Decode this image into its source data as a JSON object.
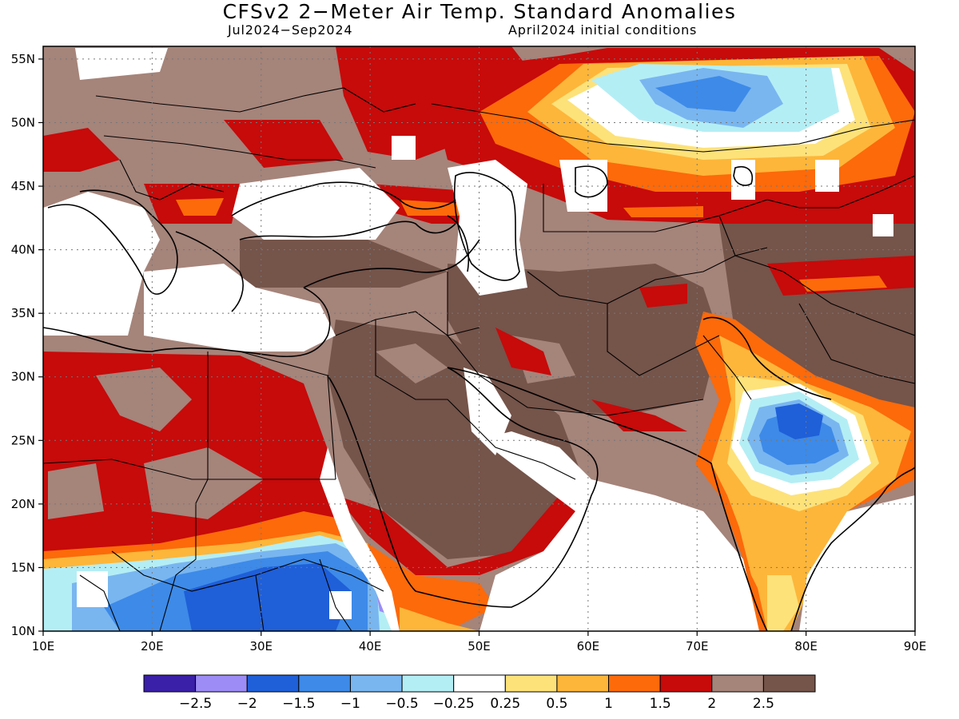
{
  "map": {
    "title": "CFSv2 2−Meter Air Temp. Standard Anomalies",
    "period": "Jul2024−Sep2024",
    "initial_conditions": "April2024 initial conditions",
    "lat_labels": [
      "55N",
      "50N",
      "45N",
      "40N",
      "35N",
      "30N",
      "25N",
      "20N",
      "15N",
      "10N"
    ],
    "lon_labels": [
      "10E",
      "20E",
      "30E",
      "40E",
      "50E",
      "60E",
      "70E",
      "80E",
      "90E"
    ],
    "extent": {
      "lon_min": 10,
      "lon_max": 90,
      "lat_min": 10,
      "lat_max": 56
    }
  },
  "colorbar": {
    "colors": [
      "#3a1fa8",
      "#9d8cf5",
      "#1f5fd8",
      "#3d8ae8",
      "#79b6f0",
      "#b4eef5",
      "#ffffff",
      "#fde27a",
      "#fdb63a",
      "#fc6a0a",
      "#c70a0a",
      "#a5847a",
      "#75544a"
    ],
    "labels": [
      "−2.5",
      "−2",
      "−1.5",
      "−1",
      "−0.5",
      "−0.25",
      "0.25",
      "0.5",
      "1",
      "1.5",
      "2",
      "2.5"
    ]
  },
  "anomaly_regions": [
    {
      "name": "central-asia-cold",
      "level": "-1"
    },
    {
      "name": "india-cold",
      "level": "-1.5"
    },
    {
      "name": "east-africa-cold",
      "level": "-1.5"
    },
    {
      "name": "middle-east-warm",
      "level": "2.5"
    },
    {
      "name": "sahara-warm",
      "level": "2"
    }
  ]
}
